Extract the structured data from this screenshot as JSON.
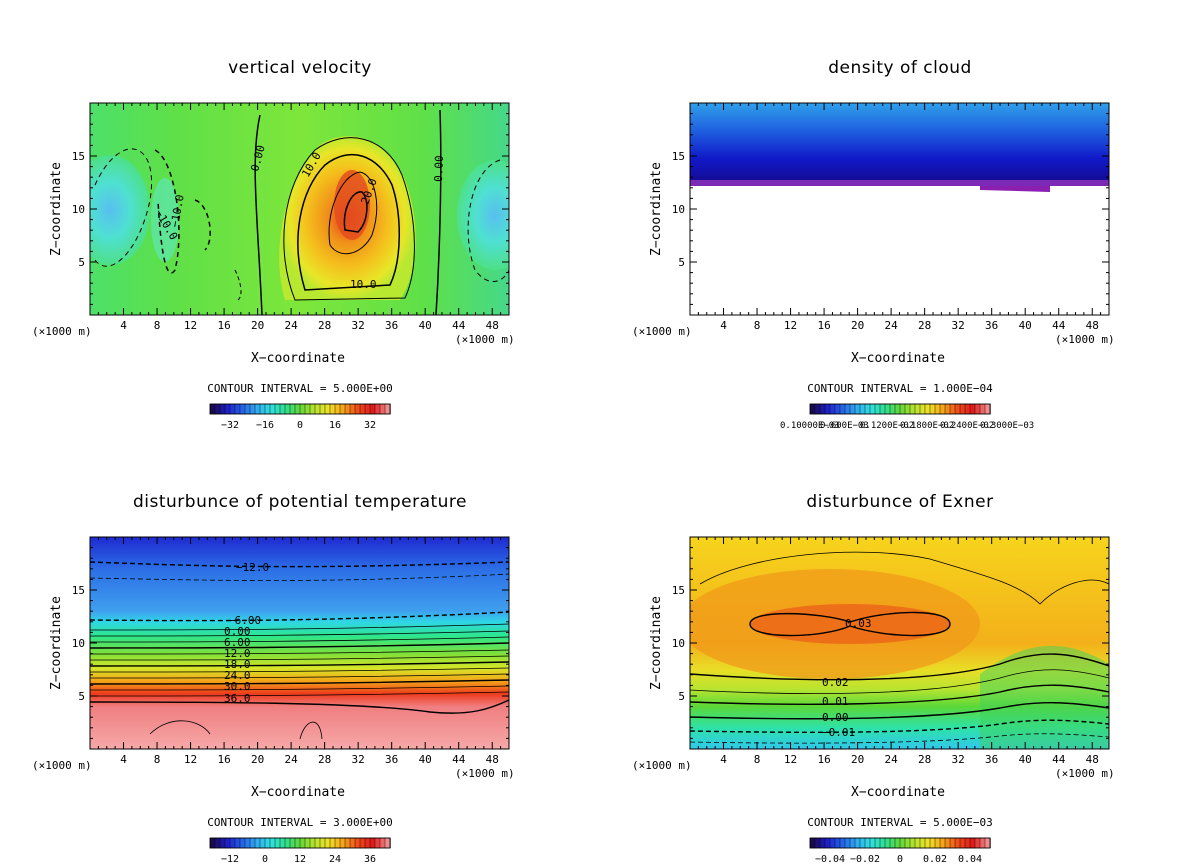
{
  "chart_data": [
    {
      "type": "contour",
      "title": "vertical velocity",
      "xlabel": "X−coordinate",
      "ylabel": "Z−coordinate",
      "xunit_left": "(×1000 m)",
      "xunit_right": "(×1000 m)",
      "xlim": [
        0,
        50
      ],
      "ylim": [
        0,
        20
      ],
      "xticks": [
        4,
        8,
        12,
        16,
        20,
        24,
        28,
        32,
        36,
        40,
        44,
        48
      ],
      "yticks": [
        5,
        10,
        15
      ],
      "contour_interval": "CONTOUR INTERVAL = 5.000E+00",
      "colorbar_labels": [
        "−32",
        "−16",
        "0",
        "16",
        "32"
      ],
      "contour_labels": [
        "0.00",
        "10.0",
        "20.0",
        "10.0",
        "0.00",
        "−10.0",
        "−10.0"
      ]
    },
    {
      "type": "contour",
      "title": "density of cloud",
      "xlabel": "X−coordinate",
      "ylabel": "Z−coordinate",
      "xunit_left": "(×1000 m)",
      "xunit_right": "(×1000 m)",
      "xlim": [
        0,
        50
      ],
      "ylim": [
        0,
        20
      ],
      "xticks": [
        4,
        8,
        12,
        16,
        20,
        24,
        28,
        32,
        36,
        40,
        44,
        48
      ],
      "yticks": [
        5,
        10,
        15
      ],
      "contour_interval": "CONTOUR INTERVAL = 1.000E−04",
      "colorbar_labels": [
        "0.10000E−03",
        "0.600E−03",
        "0.1200E−02",
        "0.1800E−02",
        "0.2400E−02",
        "0.3000E−03"
      ],
      "contour_labels": []
    },
    {
      "type": "contour",
      "title": "disturbunce of potential temperature",
      "xlabel": "X−coordinate",
      "ylabel": "Z−coordinate",
      "xunit_left": "(×1000 m)",
      "xunit_right": "(×1000 m)",
      "xlim": [
        0,
        50
      ],
      "ylim": [
        0,
        20
      ],
      "xticks": [
        4,
        8,
        12,
        16,
        20,
        24,
        28,
        32,
        36,
        40,
        44,
        48
      ],
      "yticks": [
        5,
        10,
        15
      ],
      "contour_interval": "CONTOUR INTERVAL = 3.000E+00",
      "colorbar_labels": [
        "−12",
        "0",
        "12",
        "24",
        "36"
      ],
      "contour_labels": [
        "−12.0",
        "−6.00",
        "0.00",
        "6.00",
        "12.0",
        "18.0",
        "24.0",
        "30.0",
        "36.0"
      ]
    },
    {
      "type": "contour",
      "title": "disturbunce of Exner",
      "xlabel": "X−coordinate",
      "ylabel": "Z−coordinate",
      "xunit_left": "(×1000 m)",
      "xunit_right": "(×1000 m)",
      "xlim": [
        0,
        50
      ],
      "ylim": [
        0,
        20
      ],
      "xticks": [
        4,
        8,
        12,
        16,
        20,
        24,
        28,
        32,
        36,
        40,
        44,
        48
      ],
      "yticks": [
        5,
        10,
        15
      ],
      "contour_interval": "CONTOUR INTERVAL = 5.000E−03",
      "colorbar_labels": [
        "−0.04",
        "−0.02",
        "0",
        "0.02",
        "0.04"
      ],
      "contour_labels": [
        "0.03",
        "0.02",
        "0.01",
        "0.00",
        "−0.01"
      ]
    }
  ]
}
